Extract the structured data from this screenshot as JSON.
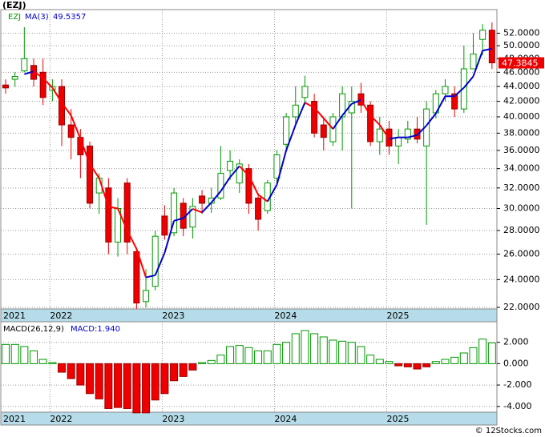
{
  "chart_data": [
    {
      "type": "candlestick",
      "title": "(EZJ)",
      "symbol": "EZJ",
      "ma_name": "MA(3)",
      "ma_value": 49.5357,
      "categories": [
        "2021",
        null,
        null,
        null,
        null,
        "2022",
        null,
        null,
        null,
        null,
        null,
        null,
        null,
        null,
        null,
        null,
        null,
        "2023",
        null,
        null,
        null,
        null,
        null,
        null,
        null,
        null,
        null,
        null,
        null,
        "2024",
        null,
        null,
        null,
        null,
        null,
        null,
        null,
        null,
        null,
        null,
        null,
        "2025",
        null,
        null,
        null,
        null,
        null,
        null,
        null,
        null,
        null,
        null,
        null
      ],
      "open": [
        44.2,
        45,
        46.2,
        47,
        46,
        43.5,
        44,
        39,
        37.5,
        36.5,
        31.5,
        32,
        27,
        32.5,
        26.2,
        22.4,
        23.5,
        29.3,
        27.8,
        30.5,
        28.3,
        31.2,
        30.5,
        31,
        33.8,
        32.5,
        34,
        31,
        29.8,
        33,
        36.7,
        40,
        42.5,
        42,
        39,
        37,
        40,
        40.5,
        43,
        41.5,
        37,
        38.5,
        36.5,
        37.3,
        38.5,
        36.5,
        40.5,
        43,
        43,
        41,
        46.5,
        51,
        52.5
      ],
      "high": [
        45,
        46,
        53,
        48,
        48,
        45,
        45,
        41,
        38.5,
        37,
        33.5,
        33,
        31,
        33,
        26.5,
        24.8,
        28,
        30.3,
        32,
        31,
        31,
        31.8,
        32,
        36.5,
        36,
        35,
        34.5,
        31.5,
        32.8,
        36,
        40.5,
        44,
        45.5,
        43,
        40,
        40.5,
        44,
        44,
        44.5,
        42,
        40,
        39.5,
        38.5,
        39.5,
        40,
        42,
        43.5,
        45,
        44,
        50,
        52,
        53.5,
        53.8
      ],
      "low": [
        43,
        44,
        46,
        44,
        41.5,
        42,
        36.5,
        35,
        33,
        30,
        29.5,
        26,
        25.8,
        26,
        21.9,
        22,
        23.2,
        27.2,
        27.5,
        27.5,
        27.3,
        29.5,
        29.6,
        30.8,
        32.8,
        31.5,
        29.5,
        28,
        29.5,
        32.5,
        36.2,
        39,
        41.5,
        37.5,
        36,
        36.5,
        36,
        30,
        40.5,
        36.5,
        35.5,
        35.5,
        34.5,
        36.8,
        36.8,
        28.5,
        39.8,
        42,
        40,
        40.5,
        46.5,
        48.5,
        46.5
      ],
      "close": [
        43.8,
        45.4,
        48,
        45,
        42.5,
        44,
        39,
        37.5,
        35.5,
        30.5,
        33,
        27,
        30,
        27,
        22.3,
        23.2,
        27.5,
        27.6,
        31.5,
        28.2,
        30.2,
        30.5,
        31,
        33.5,
        34.8,
        34.5,
        30.5,
        29,
        32.5,
        35.5,
        40,
        41.5,
        44,
        38,
        37.5,
        40,
        43,
        42,
        41.5,
        37,
        38.5,
        36.5,
        37.5,
        38.5,
        37.3,
        41,
        43,
        44,
        41,
        46.5,
        48.72,
        52.5,
        47.3845
      ],
      "ma": [
        null,
        null,
        45.73,
        46.13,
        45.17,
        43.83,
        41.83,
        40.17,
        37.33,
        34.5,
        33,
        30.17,
        30,
        28,
        26.43,
        24.17,
        24.33,
        26.1,
        28.87,
        29.1,
        29.97,
        29.63,
        30.57,
        31.67,
        33.1,
        34.27,
        33.27,
        31.33,
        30.67,
        32.33,
        36,
        39,
        41.83,
        41.17,
        39.83,
        38.5,
        40.17,
        41.67,
        42.17,
        40.17,
        39,
        37.33,
        37.5,
        37.5,
        37.77,
        38.93,
        40.43,
        42.67,
        42.67,
        43.83,
        45.41,
        49.24,
        49.5357
      ],
      "up_color": "#009900",
      "down_color": "#ee0000",
      "ma_up_color": "#0000cc",
      "ma_down_color": "#ff0000",
      "log_scale": true,
      "grid": true,
      "ylim": [
        21.89,
        56.0
      ],
      "yticks": [
        {
          "value": 22,
          "label": "22.0000"
        },
        {
          "value": 24,
          "label": "24.0000"
        },
        {
          "value": 26,
          "label": "26.0000"
        },
        {
          "value": 28,
          "label": "28.0000"
        },
        {
          "value": 30,
          "label": "30.0000"
        },
        {
          "value": 32,
          "label": "32.0000"
        },
        {
          "value": 34,
          "label": "34.0000"
        },
        {
          "value": 36,
          "label": "36.0000"
        },
        {
          "value": 38,
          "label": "38.0000"
        },
        {
          "value": 40,
          "label": "40.0000"
        },
        {
          "value": 42,
          "label": "42.0000"
        },
        {
          "value": 44,
          "label": "44.0000"
        },
        {
          "value": 46,
          "label": "46.0000"
        },
        {
          "value": 48,
          "label": "48.0000"
        },
        {
          "value": 50,
          "label": "50.0000"
        },
        {
          "value": 52,
          "label": "52.0000"
        }
      ]
    },
    {
      "type": "bar",
      "name": "MACD(26,12,9)",
      "value_text": "MACD:1.940",
      "categories": [
        "2021",
        null,
        null,
        null,
        null,
        "2022",
        null,
        null,
        null,
        null,
        null,
        null,
        null,
        null,
        null,
        null,
        null,
        "2023",
        null,
        null,
        null,
        null,
        null,
        null,
        null,
        null,
        null,
        null,
        null,
        "2024",
        null,
        null,
        null,
        null,
        null,
        null,
        null,
        null,
        null,
        null,
        null,
        "2025",
        null,
        null,
        null,
        null,
        null,
        null,
        null,
        null,
        null,
        null,
        null
      ],
      "values": [
        1.8,
        1.8,
        1.6,
        1.2,
        0.4,
        0.1,
        -0.8,
        -1.4,
        -2.0,
        -2.8,
        -3.3,
        -4.2,
        -4.1,
        -4.2,
        -4.6,
        -4.6,
        -3.4,
        -2.8,
        -1.6,
        -1.2,
        -0.6,
        0.1,
        0.3,
        0.8,
        1.6,
        1.7,
        1.5,
        1.2,
        1.2,
        1.8,
        2.0,
        2.8,
        3.1,
        2.8,
        2.5,
        2.2,
        2.1,
        2.0,
        1.6,
        0.8,
        0.4,
        0.2,
        -0.2,
        -0.3,
        -0.5,
        -0.3,
        0.2,
        0.4,
        0.6,
        1.0,
        1.5,
        2.3,
        1.94
      ],
      "up_color": "#009900",
      "down_color": "#ee0000",
      "grid": true,
      "ylim": [
        -4.54,
        3.92
      ],
      "yticks": [
        {
          "value": 2,
          "label": "2.000"
        },
        {
          "value": 0,
          "label": "0.000"
        },
        {
          "value": -2,
          "label": "-2.000"
        },
        {
          "value": -4,
          "label": "-4.000"
        }
      ]
    }
  ],
  "footer": "© 12Stocks.com"
}
